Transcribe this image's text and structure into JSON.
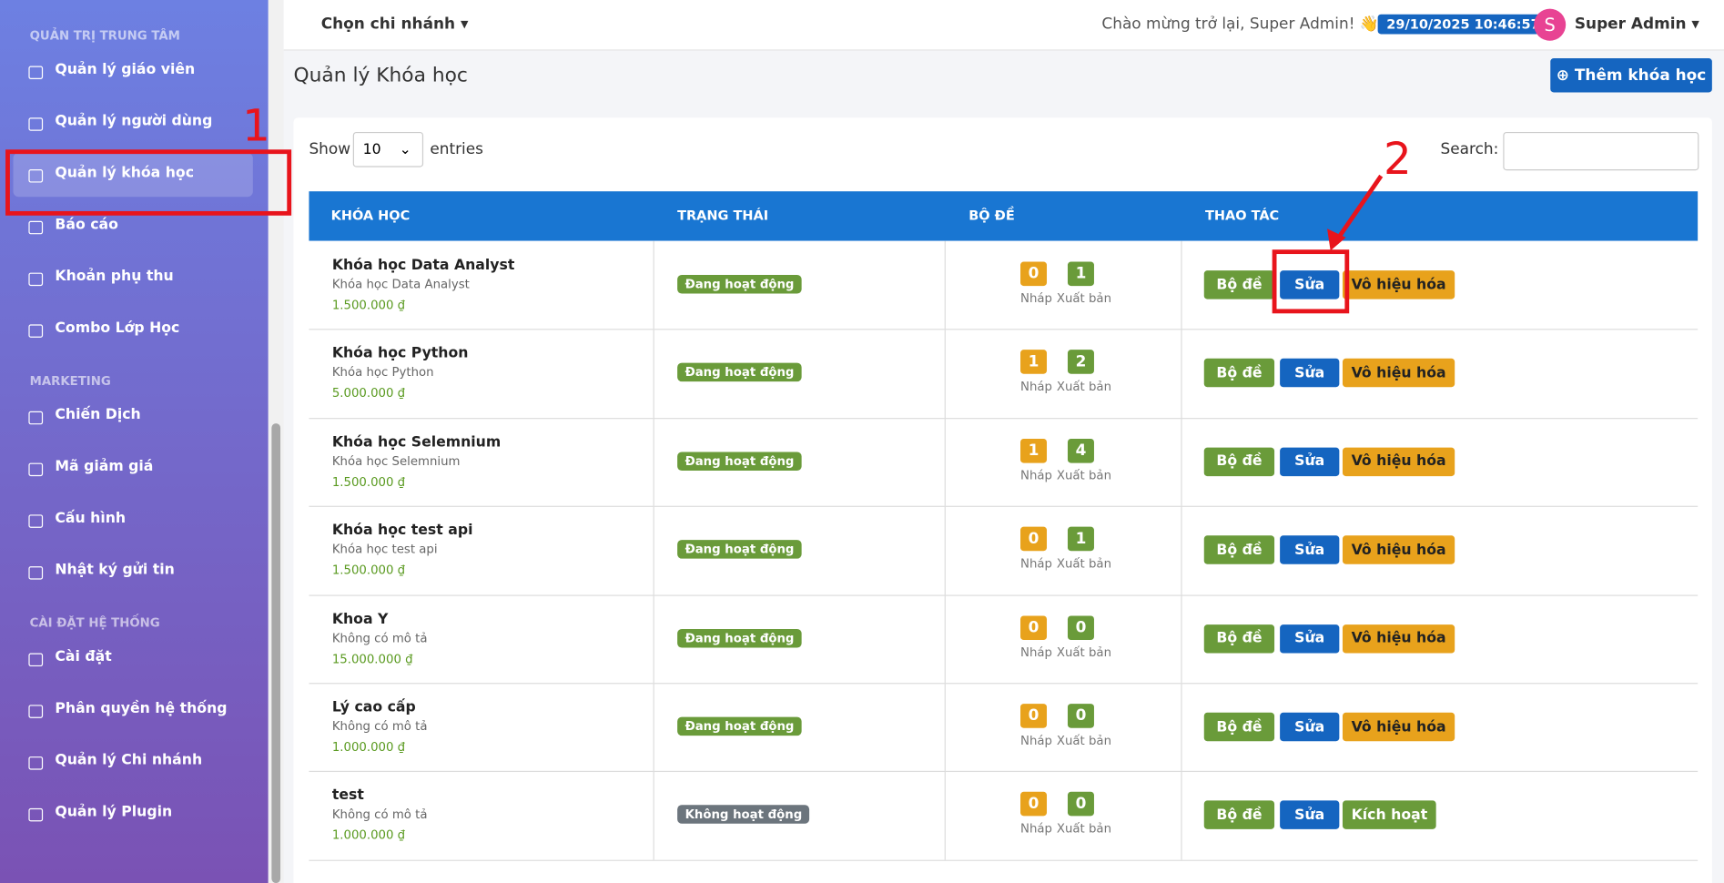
{
  "sidebar": {
    "sections": [
      {
        "title": "QUẢN TRỊ TRUNG TÂM",
        "items": [
          "Quản lý giáo viên",
          "Quản lý người dùng",
          "Quản lý khóa học",
          "Báo cáo",
          "Khoản phụ thu",
          "Combo Lớp Học"
        ]
      },
      {
        "title": "MARKETING",
        "items": [
          "Chiến Dịch",
          "Mã giảm giá",
          "Cấu hình",
          "Nhật ký gửi tin"
        ]
      },
      {
        "title": "CÀI ĐẶT HỆ THỐNG",
        "items": [
          "Cài đặt",
          "Phân quyền hệ thống",
          "Quản lý Chi nhánh",
          "Quản lý Plugin"
        ]
      }
    ]
  },
  "topbar": {
    "branch": "Chọn chi nhánh",
    "welcome": "Chào mừng trở lại, Super Admin! 👋",
    "datetime": "29/10/2025 10:46:57",
    "avatar": "S",
    "user": "Super Admin"
  },
  "page": {
    "title": "Quản lý Khóa học",
    "add_button": "Thêm khóa học"
  },
  "table": {
    "show": "Show",
    "page_size": "10",
    "entries": "entries",
    "search": "Search:",
    "columns": [
      "KHÓA HỌC",
      "TRẠNG THÁI",
      "BỘ ĐỀ",
      "THAO TÁC"
    ],
    "draft_label": "Nháp",
    "published_label": "Xuất bản",
    "rows": [
      {
        "name": "Khóa học Data Analyst",
        "description": "Khóa học Data Analyst",
        "price": "1.500.000 ₫",
        "status": "Đang hoạt động",
        "status_color": "#6a9b3a",
        "drafts": 0,
        "published": 1,
        "actions": [
          "Bộ đề",
          "Sửa",
          "Vô hiệu hóa"
        ]
      },
      {
        "name": "Khóa học Python",
        "description": "Khóa học Python",
        "price": "5.000.000 ₫",
        "status": "Đang hoạt động",
        "status_color": "#6a9b3a",
        "drafts": 1,
        "published": 2,
        "actions": [
          "Bộ đề",
          "Sửa",
          "Vô hiệu hóa"
        ]
      },
      {
        "name": "Khóa học Selemnium",
        "description": "Khóa học Selemnium",
        "price": "1.500.000 ₫",
        "status": "Đang hoạt động",
        "status_color": "#6a9b3a",
        "drafts": 1,
        "published": 4,
        "actions": [
          "Bộ đề",
          "Sửa",
          "Vô hiệu hóa"
        ]
      },
      {
        "name": "Khóa học test api",
        "description": "Khóa học test api",
        "price": "1.500.000 ₫",
        "status": "Đang hoạt động",
        "status_color": "#6a9b3a",
        "drafts": 0,
        "published": 1,
        "actions": [
          "Bộ đề",
          "Sửa",
          "Vô hiệu hóa"
        ]
      },
      {
        "name": "Khoa Y",
        "description": "Không có mô tả",
        "price": "15.000.000 ₫",
        "status": "Đang hoạt động",
        "status_color": "#6a9b3a",
        "drafts": 0,
        "published": 0,
        "actions": [
          "Bộ đề",
          "Sửa",
          "Vô hiệu hóa"
        ]
      },
      {
        "name": "Lý cao cấp",
        "description": "Không có mô tả",
        "price": "1.000.000 ₫",
        "status": "Đang hoạt động",
        "status_color": "#6a9b3a",
        "drafts": 0,
        "published": 0,
        "actions": [
          "Bộ đề",
          "Sửa",
          "Vô hiệu hóa"
        ]
      },
      {
        "name": "test",
        "description": "Không có mô tả",
        "price": "1.000.000 ₫",
        "status": "Không hoạt động",
        "status_color": "#6c757d",
        "drafts": 0,
        "published": 0,
        "actions": [
          "Bộ đề",
          "Sửa",
          "Kích hoạt"
        ]
      }
    ]
  },
  "annotations": [
    "1",
    "2"
  ]
}
